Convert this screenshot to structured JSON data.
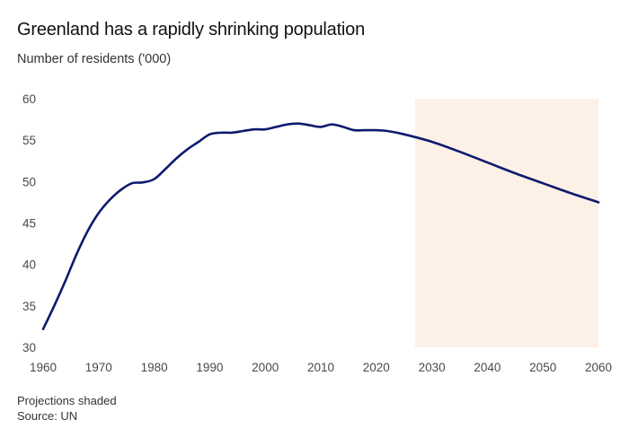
{
  "header": {
    "title": "Greenland has a rapidly shrinking population",
    "subtitle": "Number of residents ('000)"
  },
  "footer": {
    "note": "Projections shaded",
    "source": "Source: UN"
  },
  "colors": {
    "line": "#0d1a6e",
    "projection_shade": "#fdf0e6",
    "tick_text": "#4a4a4a"
  },
  "chart_data": {
    "type": "line",
    "title": "Greenland has a rapidly shrinking population",
    "ylabel": "Number of residents ('000)",
    "xlim": [
      1960,
      2060
    ],
    "ylim": [
      30,
      60
    ],
    "x_ticks": [
      1960,
      1970,
      1980,
      1990,
      2000,
      2010,
      2020,
      2030,
      2040,
      2050,
      2060
    ],
    "y_ticks": [
      30,
      35,
      40,
      45,
      50,
      55,
      60
    ],
    "grid": false,
    "projection_shaded_from": 2027,
    "series": [
      {
        "x": [
          1960,
          1962,
          1964,
          1966,
          1968,
          1970,
          1972,
          1974,
          1976,
          1978,
          1980,
          1982,
          1984,
          1986,
          1988,
          1990,
          1992,
          1994,
          1996,
          1998,
          2000,
          2002,
          2004,
          2006,
          2008,
          2010,
          2012,
          2014,
          2016,
          2018,
          2020,
          2022,
          2025,
          2030,
          2035,
          2040,
          2045,
          2050,
          2055,
          2060
        ],
        "values": [
          32.2,
          35.0,
          38.0,
          41.2,
          44.0,
          46.2,
          47.8,
          49.0,
          49.8,
          49.9,
          50.3,
          51.5,
          52.8,
          53.9,
          54.8,
          55.7,
          55.9,
          55.9,
          56.1,
          56.3,
          56.3,
          56.6,
          56.9,
          57.0,
          56.8,
          56.6,
          56.9,
          56.6,
          56.2,
          56.2,
          56.2,
          56.1,
          55.7,
          54.8,
          53.6,
          52.3,
          51.0,
          49.8,
          48.6,
          47.5
        ]
      }
    ]
  }
}
